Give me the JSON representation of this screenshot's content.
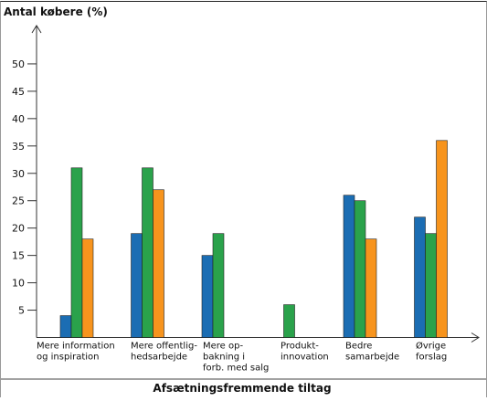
{
  "chart_data": {
    "type": "bar",
    "title": "Antal købere (%)",
    "x_label": "Afsætningsfremmende tiltag",
    "categories": [
      [
        "Mere information",
        "og inspiration"
      ],
      [
        "Mere offentlig-",
        "hedsarbejde"
      ],
      [
        "Mere op-",
        "bakning i",
        "forb. med salg"
      ],
      [
        "Produkt-",
        "innovation"
      ],
      [
        "Bedre",
        "samarbejde"
      ],
      [
        "Øvrige",
        "forslag"
      ]
    ],
    "series": [
      {
        "color": "#1b6db3",
        "values": [
          4,
          19,
          15,
          null,
          26,
          22
        ]
      },
      {
        "color": "#2aa24b",
        "values": [
          31,
          31,
          19,
          6,
          25,
          19
        ]
      },
      {
        "color": "#f7941d",
        "values": [
          18,
          27,
          null,
          null,
          18,
          36
        ]
      }
    ],
    "ylim": [
      0,
      57
    ],
    "yticks": [
      5,
      10,
      15,
      20,
      25,
      30,
      35,
      40,
      45,
      50
    ]
  }
}
